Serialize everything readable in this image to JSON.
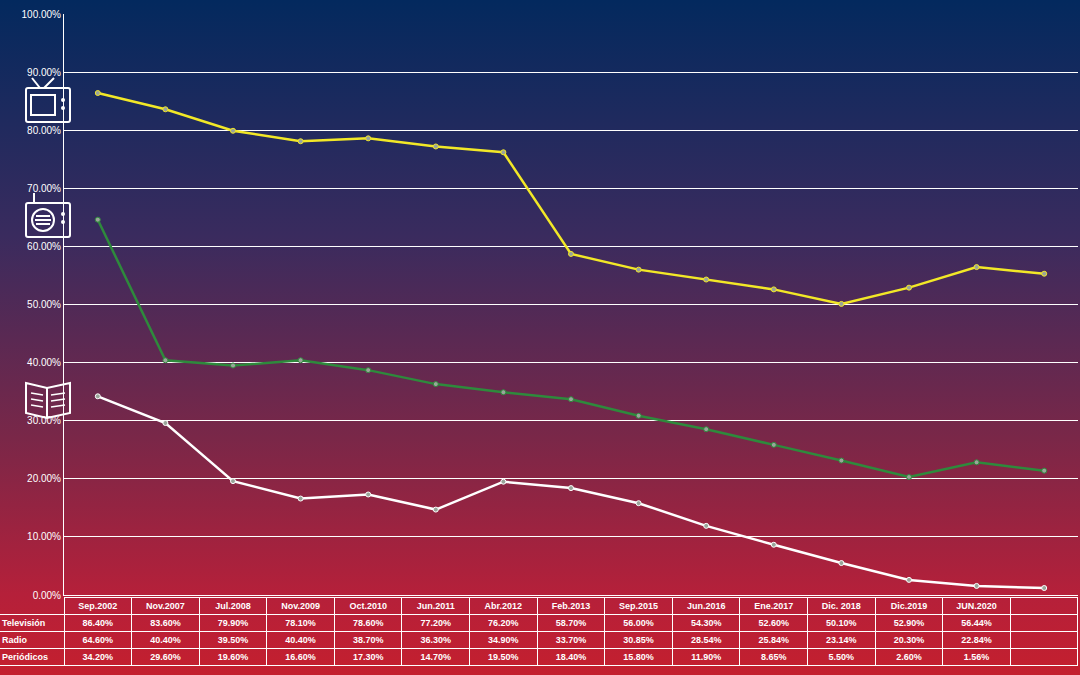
{
  "chart_data": {
    "type": "line",
    "categories": [
      "Sep.2002",
      "Nov.2007",
      "Jul.2008",
      "Nov.2009",
      "Oct.2010",
      "Jun.2011",
      "Abr.2012",
      "Feb.2013",
      "Sep.2015",
      "Jun.2016",
      "Ene.2017",
      "Dic. 2018",
      "Dic.2019",
      "JUN.2020",
      null
    ],
    "series": [
      {
        "name": "Televisión",
        "color": "#f2e827",
        "values": [
          86.4,
          83.6,
          79.9,
          78.1,
          78.6,
          77.2,
          76.2,
          58.7,
          56.0,
          54.3,
          52.6,
          50.1,
          52.9,
          56.44,
          55.3
        ],
        "value_labels": [
          "86.40%",
          "83.60%",
          "79.90%",
          "78.10%",
          "78.60%",
          "77.20%",
          "76.20%",
          "58.70%",
          "56.00%",
          "54.30%",
          "52.60%",
          "50.10%",
          "52.90%",
          "56.44%",
          null
        ]
      },
      {
        "name": "Radio",
        "color": "#2e8a3c",
        "values": [
          64.6,
          40.4,
          39.5,
          40.4,
          38.7,
          36.3,
          34.9,
          33.7,
          30.85,
          28.54,
          25.84,
          23.14,
          20.3,
          22.84,
          21.4
        ],
        "value_labels": [
          "64.60%",
          "40.40%",
          "39.50%",
          "40.40%",
          "38.70%",
          "36.30%",
          "34.90%",
          "33.70%",
          "30.85%",
          "28.54%",
          "25.84%",
          "23.14%",
          "20.30%",
          "22.84%",
          null
        ]
      },
      {
        "name": "Periódicos",
        "color": "#ffffff",
        "values": [
          34.2,
          29.6,
          19.6,
          16.6,
          17.3,
          14.7,
          19.5,
          18.4,
          15.8,
          11.9,
          8.65,
          5.5,
          2.6,
          1.56,
          1.2
        ],
        "value_labels": [
          "34.20%",
          "29.60%",
          "19.60%",
          "16.60%",
          "17.30%",
          "14.70%",
          "19.50%",
          "18.40%",
          "15.80%",
          "11.90%",
          "8.65%",
          "5.50%",
          "2.60%",
          "1.56%",
          null
        ]
      }
    ],
    "ylim": [
      0,
      100
    ],
    "yticks": [
      {
        "value": 0,
        "label": "0.00%"
      },
      {
        "value": 10,
        "label": "10.00%"
      },
      {
        "value": 20,
        "label": "20.00%"
      },
      {
        "value": 30,
        "label": "30.00%"
      },
      {
        "value": 40,
        "label": "40.00%"
      },
      {
        "value": 50,
        "label": "50.00%"
      },
      {
        "value": 60,
        "label": "60.00%"
      },
      {
        "value": 70,
        "label": "70.00%"
      },
      {
        "value": 80,
        "label": "80.00%"
      },
      {
        "value": 90,
        "label": "90.00%"
      },
      {
        "value": 100,
        "label": "100.00%"
      }
    ],
    "grid": true,
    "marker": "circle",
    "tick_labels": "y"
  }
}
